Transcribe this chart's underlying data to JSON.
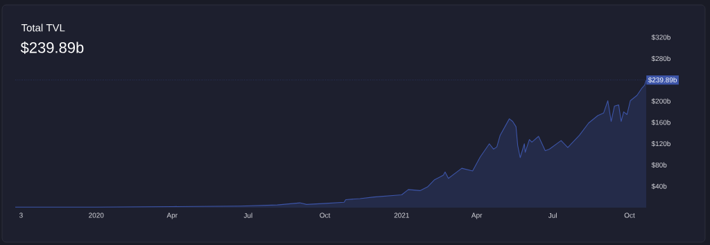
{
  "chart_data": {
    "type": "area",
    "title": "Total TVL",
    "subtitle": "$239.89b",
    "color": "#3d55a8",
    "x": [
      "2019-09-26",
      "2020-01-01",
      "2020-04-02",
      "2020-06-22",
      "2020-08-05",
      "2020-09-01",
      "2020-09-09",
      "2020-10-02",
      "2020-10-24",
      "2020-10-26",
      "2020-11-12",
      "2020-11-29",
      "2021-01-01",
      "2021-01-09",
      "2021-01-23",
      "2021-02-01",
      "2021-02-09",
      "2021-02-20",
      "2021-02-22",
      "2021-02-26",
      "2021-03-14",
      "2021-03-27",
      "2021-04-05",
      "2021-04-16",
      "2021-04-21",
      "2021-04-25",
      "2021-04-29",
      "2021-05-10",
      "2021-05-14",
      "2021-05-18",
      "2021-05-20",
      "2021-05-23",
      "2021-05-28",
      "2021-05-29",
      "2021-06-03",
      "2021-06-06",
      "2021-06-14",
      "2021-06-22",
      "2021-06-27",
      "2021-07-11",
      "2021-07-19",
      "2021-08-02",
      "2021-08-13",
      "2021-08-24",
      "2021-08-31",
      "2021-09-05",
      "2021-09-09",
      "2021-09-13",
      "2021-09-18",
      "2021-09-21",
      "2021-09-24",
      "2021-09-28",
      "2021-10-02",
      "2021-10-10",
      "2021-10-16",
      "2021-10-19",
      "2021-10-21"
    ],
    "values": [
      1,
      1,
      2,
      3,
      5,
      9,
      6,
      8,
      10,
      15,
      17,
      20,
      24,
      34,
      32,
      39,
      52,
      61,
      67,
      55,
      74,
      69,
      95,
      120,
      110,
      114,
      136,
      167,
      162,
      152,
      117,
      94,
      120,
      104,
      128,
      123,
      134,
      107,
      110,
      126,
      113,
      136,
      159,
      173,
      178,
      201,
      162,
      191,
      193,
      162,
      180,
      175,
      201,
      211,
      225,
      230,
      239.89
    ],
    "xlim": [
      "2019-09-26",
      "2021-10-21"
    ],
    "xticks": [
      {
        "value": "2019-10-03",
        "label": "3"
      },
      {
        "value": "2020-01-01",
        "label": "2020"
      },
      {
        "value": "2020-04-01",
        "label": "Apr"
      },
      {
        "value": "2020-07-01",
        "label": "Jul"
      },
      {
        "value": "2020-10-01",
        "label": "Oct"
      },
      {
        "value": "2021-01-01",
        "label": "2021"
      },
      {
        "value": "2021-04-01",
        "label": "Apr"
      },
      {
        "value": "2021-07-01",
        "label": "Jul"
      },
      {
        "value": "2021-10-01",
        "label": "Oct"
      }
    ],
    "ylim": [
      0,
      320
    ],
    "yticks": [
      {
        "value": 40,
        "label": "$40b"
      },
      {
        "value": 80,
        "label": "$80b"
      },
      {
        "value": 120,
        "label": "$120b"
      },
      {
        "value": 160,
        "label": "$160b"
      },
      {
        "value": 200,
        "label": "$200b"
      },
      {
        "value": 280,
        "label": "$280b"
      },
      {
        "value": 320,
        "label": "$320b"
      }
    ],
    "ref_lines": [
      {
        "axis": "y",
        "value": 239.89,
        "label": "$239.89b",
        "color": "#3d55a8",
        "line_style": "dotted"
      }
    ]
  }
}
